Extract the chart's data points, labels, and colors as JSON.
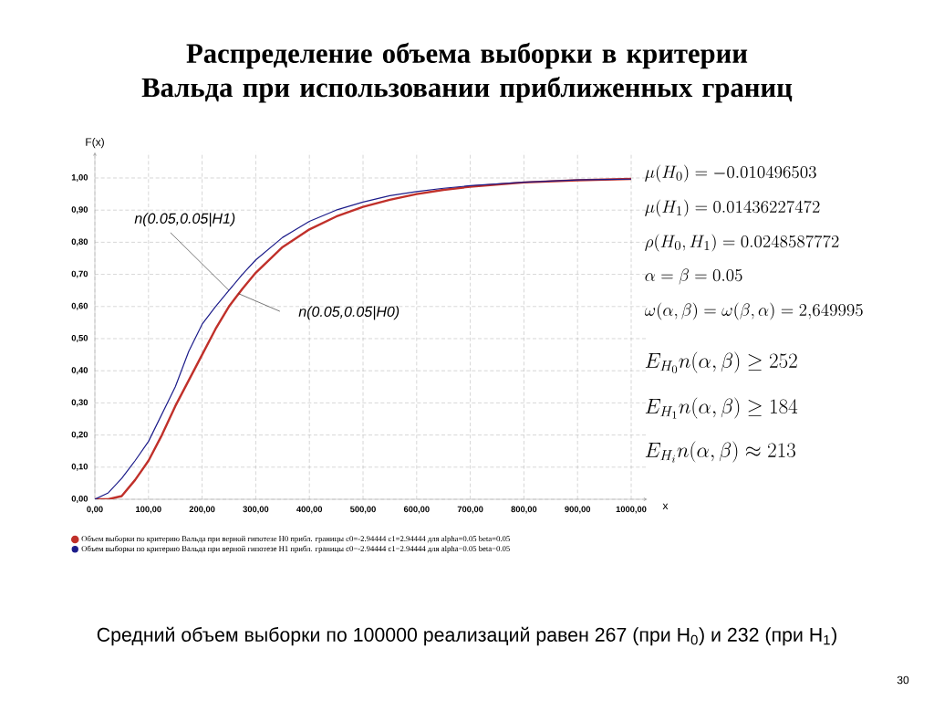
{
  "chart_data": {
    "type": "line",
    "title": "Распределение объема выборки в критерии Вальда при использовании приближенных границ",
    "xlabel": "x",
    "ylabel": "F(x)",
    "x": [
      0,
      25,
      50,
      75,
      100,
      125,
      150,
      175,
      200,
      225,
      250,
      275,
      300,
      350,
      400,
      450,
      500,
      550,
      600,
      650,
      700,
      800,
      900,
      1000
    ],
    "series": [
      {
        "name": "Объем выборки по критерию Вальда при верной гипотезе H0  прибл. границы  c0=-2.94444 c1=2.94444 для  alpha=0.05 beta=0.05",
        "color": "#c0302a",
        "values": [
          0,
          0,
          0.01,
          0.06,
          0.12,
          0.2,
          0.29,
          0.37,
          0.45,
          0.53,
          0.6,
          0.655,
          0.705,
          0.785,
          0.84,
          0.88,
          0.91,
          0.932,
          0.95,
          0.963,
          0.973,
          0.986,
          0.993,
          0.997
        ]
      },
      {
        "name": "Объем выборки по критерию Вальда при верной гипотезе H1  прибл. границы  c0=-2.94444 c1=2.94444 для  alpha=0.05 beta=0.05",
        "color": "#1c1c8a",
        "values": [
          0,
          0.02,
          0.065,
          0.12,
          0.18,
          0.265,
          0.35,
          0.46,
          0.545,
          0.6,
          0.65,
          0.7,
          0.745,
          0.815,
          0.865,
          0.9,
          0.925,
          0.945,
          0.958,
          0.968,
          0.976,
          0.987,
          0.994,
          0.997
        ]
      }
    ],
    "xlim": [
      0,
      1030
    ],
    "ylim": [
      0,
      1.08
    ],
    "xticks": [
      {
        "value": 0,
        "label": "0,00"
      },
      {
        "value": 100,
        "label": "100,00"
      },
      {
        "value": 200,
        "label": "200,00"
      },
      {
        "value": 300,
        "label": "300,00"
      },
      {
        "value": 400,
        "label": "400,00"
      },
      {
        "value": 500,
        "label": "500,00"
      },
      {
        "value": 600,
        "label": "600,00"
      },
      {
        "value": 700,
        "label": "700,00"
      },
      {
        "value": 800,
        "label": "800,00"
      },
      {
        "value": 900,
        "label": "900,00"
      },
      {
        "value": 1000,
        "label": "1000,00"
      }
    ],
    "yticks": [
      {
        "value": 0,
        "label": "0,00"
      },
      {
        "value": 0.1,
        "label": "0,10"
      },
      {
        "value": 0.2,
        "label": "0,20"
      },
      {
        "value": 0.3,
        "label": "0,30"
      },
      {
        "value": 0.4,
        "label": "0,40"
      },
      {
        "value": 0.5,
        "label": "0,50"
      },
      {
        "value": 0.6,
        "label": "0,60"
      },
      {
        "value": 0.7,
        "label": "0,70"
      },
      {
        "value": 0.8,
        "label": "0,80"
      },
      {
        "value": 0.9,
        "label": "0,90"
      },
      {
        "value": 1.0,
        "label": "1,00"
      }
    ],
    "grid": true,
    "legend": "bottom",
    "annotations": [
      {
        "text": "n(0.05,0.05|H1)",
        "x": 250,
        "y": 0.65
      },
      {
        "text": "n(0.05,0.05|H0)",
        "x": 268,
        "y": 0.64
      },
      "\\mu(H_0) = -0.010496503",
      "\\mu(H_1) = 0.01436227472",
      "\\rho(H_0, H_1) = 0.0248587772",
      "\\alpha = \\beta = 0.05",
      "\\omega(\\alpha, \\beta) = \\omega(\\beta, \\alpha) = 2{,}649995",
      "E_{H_0} n(\\alpha, \\beta) \\geq 252",
      "E_{H_1} n(\\alpha, \\beta) \\geq 184",
      "E_{H_i} n(\\alpha, \\beta) \\approx 213",
      "Средний объем выборки по 100000 реализаций равен 267 (при H$_{0}$) и 232 (при H$_{1}$)",
      "30"
    ]
  }
}
